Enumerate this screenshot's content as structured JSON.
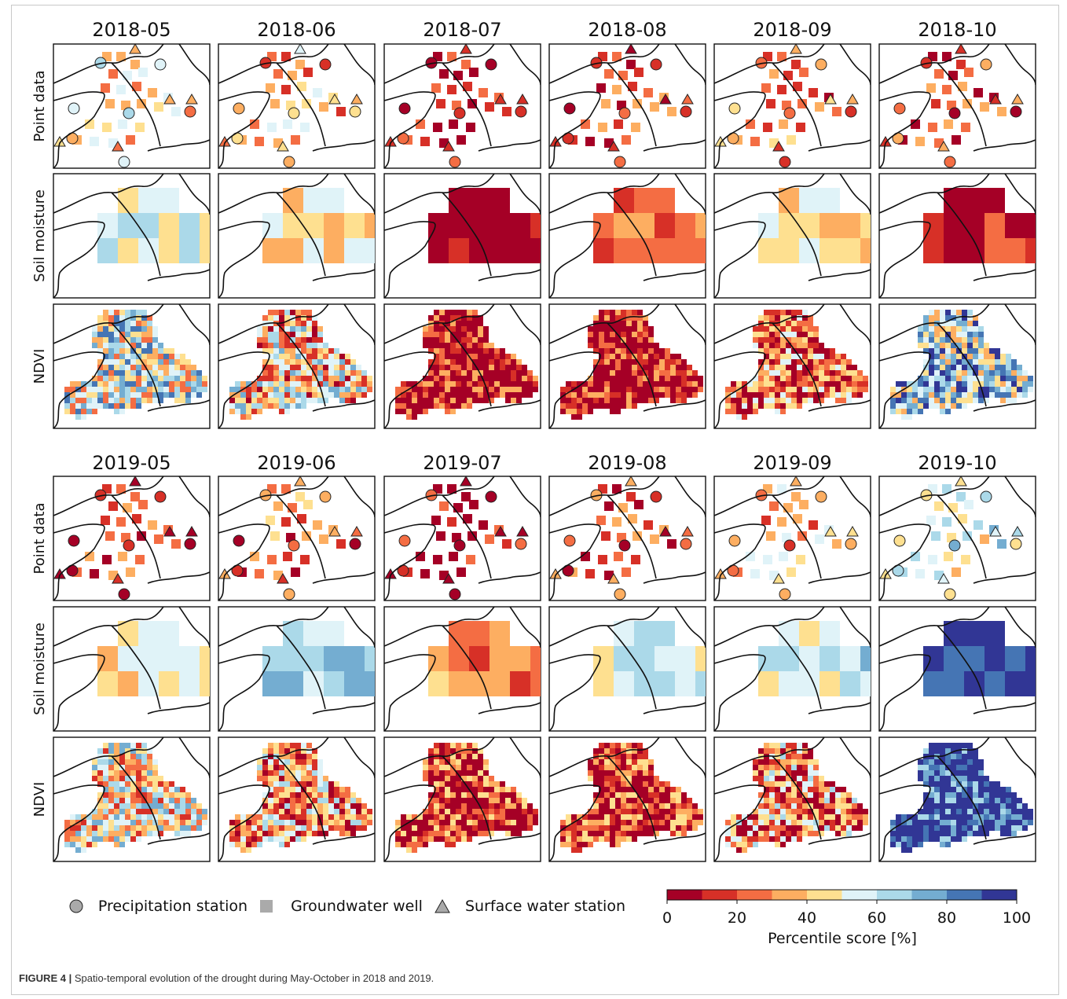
{
  "figure": {
    "block1_months": [
      "2018-05",
      "2018-06",
      "2018-07",
      "2018-08",
      "2018-09",
      "2018-10"
    ],
    "block2_months": [
      "2019-05",
      "2019-06",
      "2019-07",
      "2019-08",
      "2019-09",
      "2019-10"
    ],
    "row_labels": [
      "Point data",
      "Soil moisture",
      "NDVI"
    ],
    "legend": {
      "precipitation": "Precipitation station",
      "groundwater": "Groundwater well",
      "surface": "Surface water station"
    },
    "colorbar": {
      "label": "Percentile score [%]",
      "ticks": [
        "0",
        "20",
        "40",
        "60",
        "80",
        "100"
      ],
      "colors": [
        "#a50026",
        "#d73027",
        "#f46d43",
        "#fdae61",
        "#fee090",
        "#e0f3f8",
        "#abd9e9",
        "#74add1",
        "#4575b4",
        "#313695"
      ]
    }
  },
  "chart_data": {
    "type": "heatmap",
    "description_scale": "percentile score 0-100 in 10 bins",
    "regional_mean_percentile": {
      "2018-05": {
        "point_data": 45,
        "soil_moisture": 55,
        "ndvi": 55
      },
      "2018-06": {
        "point_data": 35,
        "soil_moisture": 45,
        "ndvi": 40
      },
      "2018-07": {
        "point_data": 10,
        "soil_moisture": 5,
        "ndvi": 5
      },
      "2018-08": {
        "point_data": 20,
        "soil_moisture": 25,
        "ndvi": 5
      },
      "2018-09": {
        "point_data": 25,
        "soil_moisture": 45,
        "ndvi": 25
      },
      "2018-10": {
        "point_data": 15,
        "soil_moisture": 15,
        "ndvi": 65
      },
      "2019-05": {
        "point_data": 15,
        "soil_moisture": 45,
        "ndvi": 45
      },
      "2019-06": {
        "point_data": 25,
        "soil_moisture": 65,
        "ndvi": 35
      },
      "2019-07": {
        "point_data": 10,
        "soil_moisture": 30,
        "ndvi": 15
      },
      "2019-08": {
        "point_data": 20,
        "soil_moisture": 55,
        "ndvi": 15
      },
      "2019-09": {
        "point_data": 35,
        "soil_moisture": 60,
        "ndvi": 30
      },
      "2019-10": {
        "point_data": 55,
        "soil_moisture": 95,
        "ndvi": 95
      }
    },
    "colorbar_range": [
      0,
      100
    ]
  },
  "caption": {
    "label": "FIGURE 4 |",
    "text": " Spatio-temporal evolution of the drought during May-October in 2018 and 2019."
  }
}
